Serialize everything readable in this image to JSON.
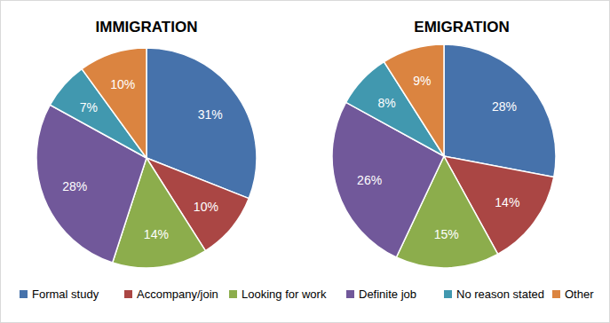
{
  "chart_data": [
    {
      "type": "pie",
      "title": "IMMIGRATION",
      "categories": [
        "Formal study",
        "Accompany/join",
        "Looking for work",
        "Definite job",
        "No reason stated",
        "Other"
      ],
      "values": [
        31,
        10,
        14,
        28,
        7,
        10
      ],
      "value_labels": [
        "31%",
        "10%",
        "14%",
        "28%",
        "7%",
        "10%"
      ],
      "colors": [
        "#4672ab",
        "#aa4644",
        "#8cad4c",
        "#71589a",
        "#4198af",
        "#db8440"
      ],
      "data_labels": true,
      "legend": "bottom"
    },
    {
      "type": "pie",
      "title": "EMIGRATION",
      "categories": [
        "Formal study",
        "Accompany/join",
        "Looking for work",
        "Definite job",
        "No reason stated",
        "Other"
      ],
      "values": [
        28,
        14,
        15,
        26,
        8,
        9
      ],
      "value_labels": [
        "28%",
        "14%",
        "15%",
        "26%",
        "8%",
        "9%"
      ],
      "colors": [
        "#4672ab",
        "#aa4644",
        "#8cad4c",
        "#71589a",
        "#4198af",
        "#db8440"
      ],
      "data_labels": true,
      "legend": "bottom"
    }
  ]
}
